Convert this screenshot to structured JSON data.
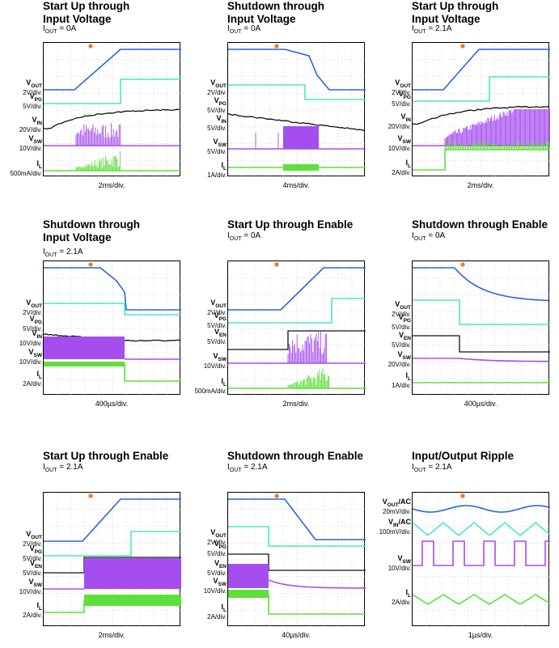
{
  "colors": {
    "vout": "#2a62e0",
    "vpg": "#48e8c8",
    "black": "#111111",
    "vsw": "#a64df0",
    "il": "#5ee03a",
    "grid": "#b0b0b0",
    "marker": "#f07820"
  },
  "chart_data": [
    {
      "type": "line",
      "title": "Start Up through\nInput Voltage",
      "condition": {
        "prefix": "I",
        "sub": "OUT",
        "value": " = 0A"
      },
      "xlabel": "2ms/div.",
      "channels": [
        {
          "name": "V",
          "sub": "OUT",
          "scale": "2V/div.",
          "color": "vout"
        },
        {
          "name": "V",
          "sub": "PG",
          "scale": "5V/div.",
          "color": "vpg"
        },
        {
          "name": "V",
          "sub": "IN",
          "scale": "20V/div.",
          "color": "black"
        },
        {
          "name": "V",
          "sub": "SW",
          "scale": "10V/div.",
          "color": "vsw"
        },
        {
          "name": "I",
          "sub": "L",
          "scale": "500mA/div.",
          "color": "il"
        }
      ]
    },
    {
      "type": "line",
      "title": "Shutdown through\nInput Voltage",
      "condition": {
        "prefix": "I",
        "sub": "OUT",
        "value": " = 0A"
      },
      "xlabel": "4ms/div.",
      "channels": [
        {
          "name": "V",
          "sub": "OUT",
          "scale": "2V/div.",
          "color": "vout"
        },
        {
          "name": "V",
          "sub": "PG",
          "scale": "5V/div.",
          "color": "vpg"
        },
        {
          "name": "V",
          "sub": "IN",
          "scale": "5V/div.",
          "color": "black"
        },
        {
          "name": "V",
          "sub": "SW",
          "scale": "5V/div.",
          "color": "vsw"
        },
        {
          "name": "I",
          "sub": "L",
          "scale": "1A/div.",
          "color": "il"
        }
      ]
    },
    {
      "type": "line",
      "title": "Start Up through\nInput Voltage",
      "condition": {
        "prefix": "I",
        "sub": "OUT",
        "value": " = 2.1A"
      },
      "xlabel": "2ms/div.",
      "channels": [
        {
          "name": "V",
          "sub": "OUT",
          "scale": "2V/div.",
          "color": "vout"
        },
        {
          "name": "V",
          "sub": "PG",
          "scale": "5V/div.",
          "color": "vpg"
        },
        {
          "name": "V",
          "sub": "IN",
          "scale": "20V/div.",
          "color": "black"
        },
        {
          "name": "V",
          "sub": "SW",
          "scale": "10V/div.",
          "color": "vsw"
        },
        {
          "name": "I",
          "sub": "L",
          "scale": "2A/div.",
          "color": "il"
        }
      ]
    },
    {
      "type": "line",
      "title": "Shutdown through\nInput Voltage",
      "condition": {
        "prefix": "I",
        "sub": "OUT",
        "value": " = 2.1A"
      },
      "xlabel": "400µs/div.",
      "channels": [
        {
          "name": "V",
          "sub": "OUT",
          "scale": "2V/div.",
          "color": "vout"
        },
        {
          "name": "V",
          "sub": "PG",
          "scale": "5V/div.",
          "color": "vpg"
        },
        {
          "name": "V",
          "sub": "IN",
          "scale": "10V/div.",
          "color": "black"
        },
        {
          "name": "V",
          "sub": "SW",
          "scale": "10V/div.",
          "color": "vsw"
        },
        {
          "name": "I",
          "sub": "L",
          "scale": "2A/div.",
          "color": "il"
        }
      ]
    },
    {
      "type": "line",
      "title": "Start Up through Enable",
      "condition": {
        "prefix": "I",
        "sub": "OUT",
        "value": " = 0A"
      },
      "xlabel": "2ms/div.",
      "channels": [
        {
          "name": "V",
          "sub": "OUT",
          "scale": "2V/div.",
          "color": "vout"
        },
        {
          "name": "V",
          "sub": "PG",
          "scale": "5V/div.",
          "color": "vpg"
        },
        {
          "name": "V",
          "sub": "EN",
          "scale": "5V/div.",
          "color": "black"
        },
        {
          "name": "V",
          "sub": "SW",
          "scale": "10V/div.",
          "color": "vsw"
        },
        {
          "name": "I",
          "sub": "L",
          "scale": "500mA/div.",
          "color": "il"
        }
      ]
    },
    {
      "type": "line",
      "title": "Shutdown through Enable",
      "condition": {
        "prefix": "I",
        "sub": "OUT",
        "value": " = 0A"
      },
      "xlabel": "400µs/div.",
      "channels": [
        {
          "name": "V",
          "sub": "OUT",
          "scale": "2V/div.",
          "color": "vout"
        },
        {
          "name": "V",
          "sub": "PG",
          "scale": "5V/div.",
          "color": "vpg"
        },
        {
          "name": "V",
          "sub": "EN",
          "scale": "5V/div.",
          "color": "black"
        },
        {
          "name": "V",
          "sub": "SW",
          "scale": "20V/div.",
          "color": "vsw"
        },
        {
          "name": "I",
          "sub": "L",
          "scale": "1A/div.",
          "color": "il"
        }
      ]
    },
    {
      "type": "line",
      "title": "Start Up through Enable",
      "condition": {
        "prefix": "I",
        "sub": "OUT",
        "value": " = 2.1A"
      },
      "xlabel": "2ms/div.",
      "channels": [
        {
          "name": "V",
          "sub": "OUT",
          "scale": "2V/div.",
          "color": "vout"
        },
        {
          "name": "V",
          "sub": "PG",
          "scale": "5V/div.",
          "color": "vpg"
        },
        {
          "name": "V",
          "sub": "EN",
          "scale": "5V/div.",
          "color": "black"
        },
        {
          "name": "V",
          "sub": "SW",
          "scale": "10V/div.",
          "color": "vsw"
        },
        {
          "name": "I",
          "sub": "L",
          "scale": "2A/div.",
          "color": "il"
        }
      ]
    },
    {
      "type": "line",
      "title": "Shutdown through Enable",
      "condition": {
        "prefix": "I",
        "sub": "OUT",
        "value": " = 2.1A"
      },
      "xlabel": "40µs/div.",
      "channels": [
        {
          "name": "V",
          "sub": "OUT",
          "scale": "2V/div.",
          "color": "vout"
        },
        {
          "name": "V",
          "sub": "PG",
          "scale": "5V/div.",
          "color": "vpg"
        },
        {
          "name": "V",
          "sub": "EN",
          "scale": "5V/div.",
          "color": "black"
        },
        {
          "name": "V",
          "sub": "SW",
          "scale": "10V/div.",
          "color": "vsw"
        },
        {
          "name": "I",
          "sub": "L",
          "scale": "2A/div.",
          "color": "il"
        }
      ]
    },
    {
      "type": "line",
      "title": "Input/Output Ripple",
      "condition": {
        "prefix": "I",
        "sub": "OUT",
        "value": " = 2.1A"
      },
      "xlabel": "1µs/div.",
      "channels": [
        {
          "name": "V",
          "sub": "OUT",
          "suffix": "/AC",
          "scale": "20mV/div.",
          "color": "vout"
        },
        {
          "name": "V",
          "sub": "IN",
          "suffix": "/AC",
          "scale": "100mV/div.",
          "color": "vpg"
        },
        {
          "name": "V",
          "sub": "SW",
          "scale": "10V/div.",
          "color": "vsw"
        },
        {
          "name": "I",
          "sub": "L",
          "scale": "2A/div.",
          "color": "il"
        }
      ]
    }
  ]
}
